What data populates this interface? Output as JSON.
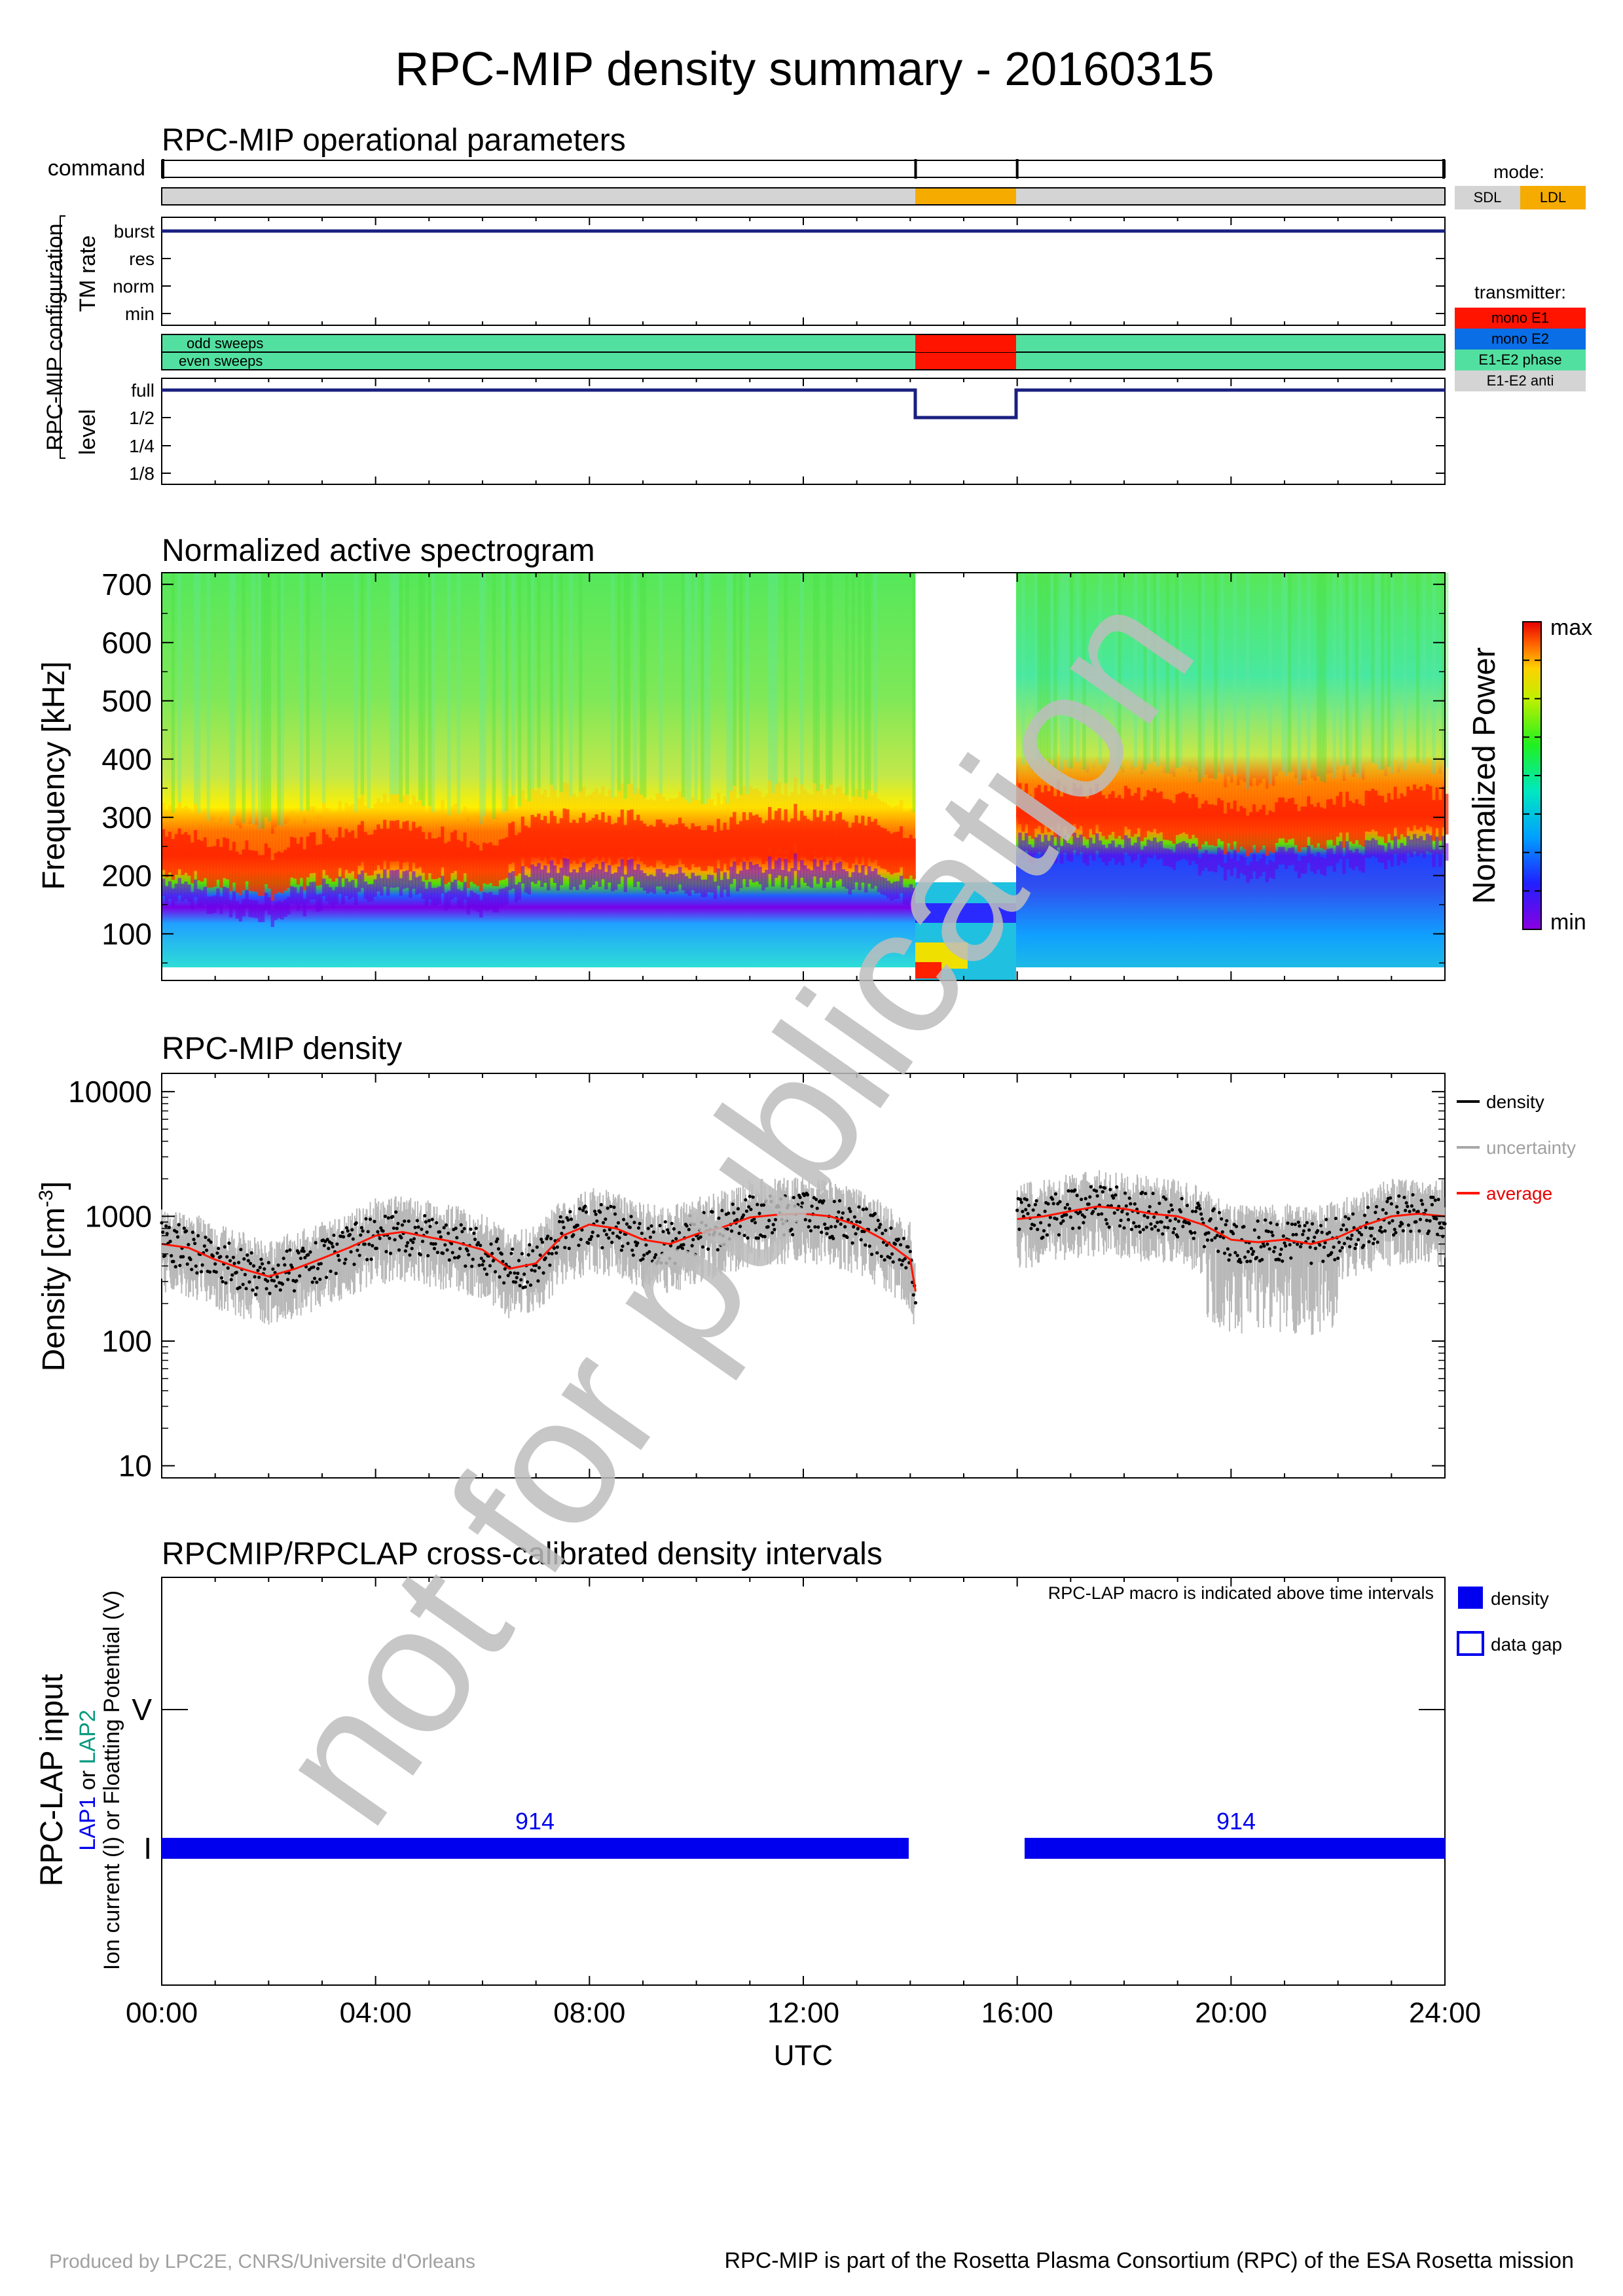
{
  "title": "RPC-MIP density summary - 20160315",
  "watermark": "not for publication",
  "footer": {
    "left": "Produced by LPC2E, CNRS/Universite d'Orleans",
    "right": "RPC-MIP is part of the Rosetta Plasma Consortium (RPC) of the ESA Rosetta mission"
  },
  "time_axis": {
    "ticks": [
      "00:00",
      "04:00",
      "08:00",
      "12:00",
      "16:00",
      "20:00",
      "24:00"
    ],
    "label": "UTC"
  },
  "ops": {
    "title": "RPC-MIP operational parameters",
    "command_label": "command",
    "group_label": "RPC-MIP configuration",
    "tm_label": "TM rate",
    "tm_ticks": [
      "burst",
      "res",
      "norm",
      "min"
    ],
    "level_label": "level",
    "level_ticks": [
      "full",
      "1/2",
      "1/4",
      "1/8"
    ],
    "odd_label": "odd sweeps",
    "even_label": "even sweeps",
    "mode_legend": {
      "title": "mode:",
      "items": [
        "SDL",
        "LDL"
      ]
    },
    "transmitter_legend": {
      "title": "transmitter:",
      "items": [
        "mono E1",
        "mono E2",
        "E1-E2 phase",
        "E1-E2 anti"
      ]
    }
  },
  "spectrogram": {
    "title": "Normalized active spectrogram",
    "ylabel": "Frequency [kHz]",
    "yticks": [
      "100",
      "200",
      "300",
      "400",
      "500",
      "600",
      "700"
    ],
    "colorbar_label": "Normalized Power",
    "colorbar_max": "max",
    "colorbar_min": "min"
  },
  "density": {
    "title": "RPC-MIP density",
    "ylabel_main": "Density [cm",
    "ylabel_sup": "-3",
    "ylabel_end": "]",
    "yticks": [
      "10",
      "100",
      "1000",
      "10000"
    ],
    "legend": [
      "density",
      "uncertainty",
      "average"
    ]
  },
  "lap": {
    "title": "RPCMIP/RPCLAP cross-calibrated density intervals",
    "note": "RPC-LAP macro is indicated above time intervals",
    "ylabel": "RPC-LAP input",
    "sub_lap1": "LAP1",
    "sub_or": " or ",
    "sub_lap2": "LAP2",
    "sub_line2": "Ion current (I) or Floatting Potential (V)",
    "yticks": [
      "V",
      "I"
    ],
    "legend": [
      "density",
      "data gap"
    ],
    "macro_labels": [
      "914",
      "914"
    ]
  },
  "colors": {
    "navy": "#1a2080",
    "orange": "#f5ab00",
    "gray": "#d4d4d4",
    "red": "#ff1400",
    "blue": "#0a6ee6",
    "green": "#52e0a0",
    "lap_blue": "#0000ee",
    "teal": "#0a9a80",
    "watermark": "#bdbdbd"
  },
  "chart_data": [
    {
      "type": "line",
      "title": "RPC-MIP operational parameters",
      "x_unit": "hour UTC",
      "xlim": [
        0,
        24
      ],
      "command_marks": [
        0,
        14.1,
        16.0,
        24
      ],
      "mode_intervals": [
        {
          "start": 0,
          "end": 14.1,
          "mode": "SDL"
        },
        {
          "start": 14.1,
          "end": 16.0,
          "mode": "LDL"
        },
        {
          "start": 16.0,
          "end": 24,
          "mode": "SDL"
        }
      ],
      "tm_rate": [
        {
          "start": 0,
          "end": 24,
          "value": "burst"
        }
      ],
      "transmitter_intervals": [
        {
          "start": 0,
          "end": 14.1,
          "value": "E1-E2 phase"
        },
        {
          "start": 14.1,
          "end": 16.0,
          "value": "mono E1"
        },
        {
          "start": 16.0,
          "end": 24,
          "value": "E1-E2 phase"
        }
      ],
      "level": [
        {
          "start": 0,
          "end": 14.1,
          "value": "full"
        },
        {
          "start": 14.1,
          "end": 16.0,
          "value": "1/2"
        },
        {
          "start": 16.0,
          "end": 24,
          "value": "full"
        }
      ]
    },
    {
      "type": "heatmap",
      "title": "Normalized active spectrogram",
      "ylabel": "Frequency [kHz]",
      "xlim": [
        0,
        24
      ],
      "ylim": [
        20,
        720
      ],
      "peak_frequency_kHz": {
        "x": [
          0,
          1,
          2,
          3,
          4,
          5,
          6,
          7,
          8,
          9,
          10,
          11,
          12,
          13,
          14,
          16,
          17,
          18,
          19,
          20,
          21,
          22,
          23,
          24
        ],
        "y": [
          235,
          210,
          195,
          225,
          240,
          230,
          210,
          255,
          260,
          255,
          240,
          255,
          265,
          250,
          230,
          300,
          305,
          295,
          290,
          270,
          275,
          285,
          295,
          300
        ]
      },
      "gap": [
        14.1,
        16.0
      ]
    },
    {
      "type": "line",
      "title": "RPC-MIP density",
      "ylabel": "Density [cm-3]",
      "yscale": "log",
      "ylim": [
        8,
        14000
      ],
      "xlim": [
        0,
        24
      ],
      "series": [
        {
          "name": "average",
          "x": [
            0,
            0.5,
            1,
            1.5,
            2,
            2.5,
            3,
            3.5,
            4,
            4.5,
            5,
            5.5,
            6,
            6.5,
            7,
            7.5,
            8,
            8.5,
            9,
            9.5,
            10,
            10.5,
            11,
            11.5,
            12,
            12.5,
            13,
            13.5,
            14,
            14.1
          ],
          "y": [
            600,
            560,
            450,
            380,
            330,
            380,
            460,
            560,
            700,
            750,
            680,
            620,
            540,
            380,
            420,
            700,
            860,
            800,
            650,
            600,
            720,
            820,
            980,
            1030,
            1050,
            1000,
            850,
            650,
            450,
            250
          ]
        },
        {
          "name": "average",
          "x": [
            16,
            16.5,
            17,
            17.5,
            18,
            18.5,
            19,
            19.5,
            20,
            20.5,
            21,
            21.5,
            22,
            22.5,
            23,
            23.5,
            24
          ],
          "y": [
            950,
            1000,
            1100,
            1200,
            1150,
            1050,
            1000,
            850,
            650,
            620,
            650,
            600,
            680,
            850,
            1000,
            1050,
            1000
          ]
        }
      ],
      "legend": [
        "density",
        "uncertainty",
        "average"
      ]
    },
    {
      "type": "bar",
      "title": "RPCMIP/RPCLAP cross-calibrated density intervals",
      "xlim": [
        0,
        24
      ],
      "intervals": [
        {
          "start": 0,
          "end": 13.95,
          "input": "I",
          "probe": "LAP1",
          "macro": "914"
        },
        {
          "start": 16.05,
          "end": 24,
          "input": "I",
          "probe": "LAP1",
          "macro": "914"
        }
      ]
    }
  ]
}
